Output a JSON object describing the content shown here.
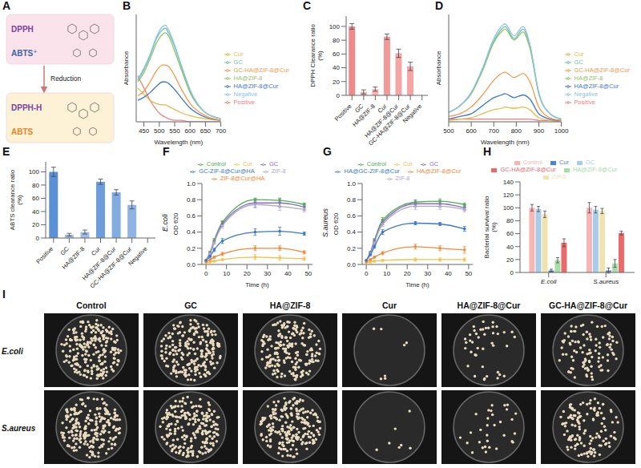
{
  "chart_data": [
    {
      "panel": "A",
      "type": "diagram",
      "nodes": [
        {
          "labels": [
            "DPPH",
            "ABTS⁺"
          ],
          "color": "#fbe3ec"
        },
        {
          "labels": [
            "DPPH-H",
            "ABTS"
          ],
          "color": "#fdf1d6"
        }
      ],
      "edge_label": "Reduction"
    },
    {
      "panel": "B",
      "type": "line",
      "x_label": "Wavelength (nm)",
      "y_label": "Absorbance",
      "xlim": [
        425,
        700
      ],
      "xticks": [
        450,
        500,
        550,
        600,
        650,
        700
      ],
      "ylim": [
        0,
        0.7
      ],
      "tick_labels": "x",
      "legend": "right",
      "marker": "none",
      "x": [
        430,
        450,
        470,
        490,
        510,
        520,
        530,
        550,
        570,
        600,
        650,
        700
      ],
      "series": [
        {
          "name": "Positive",
          "color": "#f08080",
          "values": [
            0.3,
            0.22,
            0.14,
            0.08,
            0.04,
            0.03,
            0.02,
            0.01,
            0.01,
            0,
            0,
            0
          ]
        },
        {
          "name": "GC",
          "color": "#6dbfa8",
          "values": [
            0.27,
            0.34,
            0.43,
            0.54,
            0.6,
            0.61,
            0.58,
            0.49,
            0.37,
            0.2,
            0.06,
            0.02
          ]
        },
        {
          "name": "HA@ZIF-8",
          "color": "#8fc46a",
          "values": [
            0.26,
            0.32,
            0.41,
            0.51,
            0.57,
            0.58,
            0.56,
            0.46,
            0.35,
            0.19,
            0.06,
            0.02
          ]
        },
        {
          "name": "Cur",
          "color": "#e8b84a",
          "values": [
            0.22,
            0.18,
            0.14,
            0.12,
            0.11,
            0.11,
            0.1,
            0.08,
            0.06,
            0.04,
            0.02,
            0.01
          ]
        },
        {
          "name": "HA@ZIF-8@Cur",
          "color": "#3d78cc",
          "values": [
            0.14,
            0.16,
            0.19,
            0.23,
            0.26,
            0.26,
            0.25,
            0.21,
            0.16,
            0.09,
            0.03,
            0.01
          ]
        },
        {
          "name": "GC-HA@ZIF-8@Cur",
          "color": "#f39a4e",
          "values": [
            0.17,
            0.2,
            0.26,
            0.33,
            0.37,
            0.37,
            0.36,
            0.3,
            0.22,
            0.12,
            0.04,
            0.01
          ]
        },
        {
          "name": "Negative",
          "color": "#8cc4ec",
          "values": [
            0.28,
            0.35,
            0.44,
            0.55,
            0.62,
            0.63,
            0.6,
            0.5,
            0.38,
            0.21,
            0.06,
            0.02
          ]
        }
      ]
    },
    {
      "panel": "C",
      "type": "bar",
      "y_label": "DPPH Clearance ratio (%)",
      "ylim": [
        0,
        115
      ],
      "yticks": [
        0,
        20,
        40,
        60,
        80,
        100
      ],
      "categories": [
        "Positive",
        "GC",
        "HA@ZIF-8",
        "Cur",
        "HA@ZIF-8@Cur",
        "GC-HA@ZIF-8@Cur",
        "Negative"
      ],
      "values": [
        100,
        5,
        9,
        85,
        61,
        42,
        0
      ],
      "errors": [
        4,
        3,
        3,
        4,
        6,
        6,
        1
      ],
      "colors": [
        "#f08a8a",
        "#f7b3b3",
        "#f7b3b3",
        "#f29a9a",
        "#f4a5a5",
        "#f4a5a5",
        "#f7c2c2"
      ]
    },
    {
      "panel": "D",
      "type": "line",
      "x_label": "Wavelength (nm)",
      "y_label": "Absorbance",
      "xlim": [
        500,
        1000
      ],
      "xticks": [
        500,
        600,
        700,
        800,
        900,
        1000
      ],
      "ylim": [
        0,
        0.8
      ],
      "tick_labels": "x",
      "legend": "right",
      "marker": "none",
      "x": [
        500,
        550,
        600,
        650,
        700,
        734,
        750,
        790,
        830,
        860,
        900,
        950,
        1000
      ],
      "series": [
        {
          "name": "Positive",
          "color": "#f08080",
          "values": [
            0.02,
            0.02,
            0.02,
            0.02,
            0.02,
            0.02,
            0.02,
            0.02,
            0.02,
            0.02,
            0.01,
            0.01,
            0.01
          ]
        },
        {
          "name": "GC",
          "color": "#6dbfa8",
          "values": [
            0.07,
            0.12,
            0.21,
            0.39,
            0.6,
            0.69,
            0.71,
            0.62,
            0.69,
            0.57,
            0.21,
            0.06,
            0.02
          ]
        },
        {
          "name": "HA@ZIF-8",
          "color": "#8fc46a",
          "values": [
            0.07,
            0.12,
            0.21,
            0.38,
            0.59,
            0.67,
            0.69,
            0.61,
            0.67,
            0.55,
            0.21,
            0.06,
            0.02
          ]
        },
        {
          "name": "Cur",
          "color": "#e8b84a",
          "values": [
            0.01,
            0.02,
            0.03,
            0.06,
            0.09,
            0.1,
            0.11,
            0.1,
            0.11,
            0.09,
            0.03,
            0.01,
            0
          ]
        },
        {
          "name": "HA@ZIF-8@Cur",
          "color": "#3d78cc",
          "values": [
            0.02,
            0.04,
            0.06,
            0.12,
            0.18,
            0.2,
            0.21,
            0.18,
            0.2,
            0.17,
            0.06,
            0.02,
            0.01
          ]
        },
        {
          "name": "GC-HA@ZIF-8@Cur",
          "color": "#f39a4e",
          "values": [
            0.04,
            0.06,
            0.11,
            0.2,
            0.31,
            0.36,
            0.37,
            0.33,
            0.36,
            0.3,
            0.11,
            0.03,
            0.01
          ]
        },
        {
          "name": "Negative",
          "color": "#8cc4ec",
          "values": [
            0.07,
            0.12,
            0.22,
            0.4,
            0.62,
            0.71,
            0.73,
            0.64,
            0.71,
            0.58,
            0.22,
            0.06,
            0.02
          ]
        }
      ]
    },
    {
      "panel": "E",
      "type": "bar",
      "y_label": "ABTS clearance ratio (%)",
      "ylim": [
        0,
        115
      ],
      "yticks": [
        0,
        20,
        40,
        60,
        80,
        100
      ],
      "categories": [
        "Positive",
        "GC",
        "HA@ZIF-8",
        "Cur",
        "HA@ZIF-8@Cur",
        "GC-HA@ZIF-8@Cur",
        "Negative"
      ],
      "values": [
        100,
        5,
        9,
        85,
        69,
        50,
        0
      ],
      "errors": [
        7,
        2,
        3,
        4,
        4,
        6,
        1
      ],
      "colors": [
        "#5b8fd6",
        "#9dbde8",
        "#9dbde8",
        "#6e9ddb",
        "#82acdf",
        "#8fb3e3",
        "#b8d0ee"
      ]
    },
    {
      "panel": "F",
      "type": "line",
      "annotation": "E.coli",
      "x_label": "Time (h)",
      "y_label": "OD 620",
      "xlim": [
        -2,
        52
      ],
      "xticks": [
        0,
        10,
        20,
        30,
        40,
        50
      ],
      "ylim": [
        0,
        1
      ],
      "yticks": [
        {
          "value": 0,
          "label": "0.0"
        },
        0.2,
        0.4,
        0.6,
        0.8,
        {
          "value": 1,
          "label": "1.0"
        }
      ],
      "legend": "top",
      "marker": "circle",
      "x": [
        0,
        2,
        4,
        8,
        24,
        36,
        48
      ],
      "series": [
        {
          "name": "Control",
          "color": "#4caf50",
          "values": [
            0.05,
            0.15,
            0.3,
            0.52,
            0.8,
            0.79,
            0.74
          ],
          "errors": [
            0,
            0.01,
            0.02,
            0.02,
            0.02,
            0.03,
            0.02
          ]
        },
        {
          "name": "GC",
          "color": "#8a6fc0",
          "values": [
            0.05,
            0.14,
            0.28,
            0.5,
            0.76,
            0.76,
            0.71
          ],
          "errors": [
            0,
            0.01,
            0.02,
            0.03,
            0.05,
            0.05,
            0.04
          ]
        },
        {
          "name": "ZIF-8",
          "color": "#b0a6d0",
          "values": [
            0.05,
            0.13,
            0.27,
            0.48,
            0.74,
            0.72,
            0.68
          ],
          "errors": [
            0,
            0.01,
            0.02,
            0.03,
            0.04,
            0.05,
            0.03
          ]
        },
        {
          "name": "Cur",
          "color": "#f2c14e",
          "values": [
            0.02,
            0.03,
            0.04,
            0.06,
            0.09,
            0.08,
            0.07
          ],
          "errors": [
            0,
            0.01,
            0.01,
            0.01,
            0.03,
            0.03,
            0.02
          ]
        },
        {
          "name": "ZIF-8@Cur@HA",
          "color": "#f08a3c",
          "values": [
            0.03,
            0.06,
            0.09,
            0.13,
            0.2,
            0.2,
            0.15
          ],
          "errors": [
            0,
            0.01,
            0.01,
            0.02,
            0.03,
            0.03,
            0.02
          ]
        },
        {
          "name": "GC-ZIF-8@Cur@HA",
          "color": "#3a78c8",
          "values": [
            0.05,
            0.1,
            0.18,
            0.29,
            0.4,
            0.41,
            0.38
          ],
          "errors": [
            0,
            0.01,
            0.02,
            0.03,
            0.04,
            0.05,
            0.02
          ]
        }
      ]
    },
    {
      "panel": "G",
      "type": "line",
      "annotation": "S.aureus",
      "x_label": "Time (h)",
      "y_label": "OD 620",
      "xlim": [
        -2,
        52
      ],
      "xticks": [
        0,
        10,
        20,
        30,
        40,
        50
      ],
      "ylim": [
        0,
        1
      ],
      "yticks": [
        {
          "value": 0,
          "label": "0.0"
        },
        0.2,
        0.4,
        0.6,
        0.8,
        {
          "value": 1,
          "label": "1.0"
        }
      ],
      "legend": "top",
      "marker": "circle",
      "x": [
        0,
        2,
        4,
        8,
        24,
        36,
        48
      ],
      "series": [
        {
          "name": "Control",
          "color": "#4caf50",
          "values": [
            0.05,
            0.15,
            0.3,
            0.55,
            0.77,
            0.78,
            0.74
          ],
          "errors": [
            0,
            0.01,
            0.02,
            0.03,
            0.03,
            0.03,
            0.02
          ]
        },
        {
          "name": "GC",
          "color": "#8a6fc0",
          "values": [
            0.05,
            0.14,
            0.29,
            0.52,
            0.75,
            0.75,
            0.7
          ],
          "errors": [
            0,
            0.01,
            0.02,
            0.03,
            0.04,
            0.04,
            0.03
          ]
        },
        {
          "name": "ZIF-8",
          "color": "#b0a6d0",
          "values": [
            0.05,
            0.13,
            0.27,
            0.5,
            0.72,
            0.72,
            0.68
          ],
          "errors": [
            0,
            0.01,
            0.02,
            0.03,
            0.04,
            0.04,
            0.03
          ]
        },
        {
          "name": "Cur",
          "color": "#f2c14e",
          "values": [
            0.02,
            0.03,
            0.04,
            0.05,
            0.06,
            0.06,
            0.06
          ],
          "errors": [
            0,
            0.01,
            0.01,
            0.01,
            0.02,
            0.02,
            0.02
          ]
        },
        {
          "name": "HA@ZIF-8@Cur",
          "color": "#f08a3c",
          "values": [
            0.03,
            0.06,
            0.09,
            0.14,
            0.22,
            0.2,
            0.18
          ],
          "errors": [
            0,
            0.01,
            0.01,
            0.02,
            0.03,
            0.03,
            0.04
          ]
        },
        {
          "name": "HA@GC-ZIF-8@Cur",
          "color": "#3a78c8",
          "values": [
            0.05,
            0.12,
            0.22,
            0.4,
            0.51,
            0.5,
            0.44
          ],
          "errors": [
            0,
            0.01,
            0.02,
            0.03,
            0.02,
            0.02,
            0.03
          ]
        }
      ]
    },
    {
      "panel": "H",
      "type": "bar",
      "y_label": "Bacterial survival ratio (%)",
      "ylim": [
        0,
        140
      ],
      "yticks": [
        0,
        20,
        40,
        60,
        80,
        100,
        120,
        140
      ],
      "legend": "top",
      "categories": [
        "E.coli",
        "S.aureus"
      ],
      "series": [
        {
          "name": "Control",
          "color": "#f7b6b6",
          "values": [
            100,
            100
          ],
          "errors": [
            5,
            8
          ]
        },
        {
          "name": "GC",
          "color": "#a9cde9",
          "values": [
            98,
            97
          ],
          "errors": [
            4,
            5
          ]
        },
        {
          "name": "ZIF-8",
          "color": "#efe3b0",
          "values": [
            90,
            95
          ],
          "errors": [
            5,
            4
          ]
        },
        {
          "name": "Cur",
          "color": "#4a86d0",
          "values": [
            3,
            3
          ],
          "errors": [
            2,
            4
          ]
        },
        {
          "name": "HA@ZIF-8@Cur",
          "color": "#a8dca8",
          "values": [
            19,
            14
          ],
          "errors": [
            4,
            6
          ]
        },
        {
          "name": "GC-HA@ZIF-8@Cur",
          "color": "#e86a6a",
          "values": [
            46,
            61
          ],
          "errors": [
            6,
            3
          ]
        }
      ]
    },
    {
      "panel": "I",
      "type": "image_grid",
      "columns": [
        "Control",
        "GC",
        "HA@ZIF-8",
        "Cur",
        "HA@ZIF-8@Cur",
        "GC-HA@ZIF-8@Cur"
      ],
      "rows": [
        "E.coli",
        "S.aureus"
      ]
    }
  ]
}
